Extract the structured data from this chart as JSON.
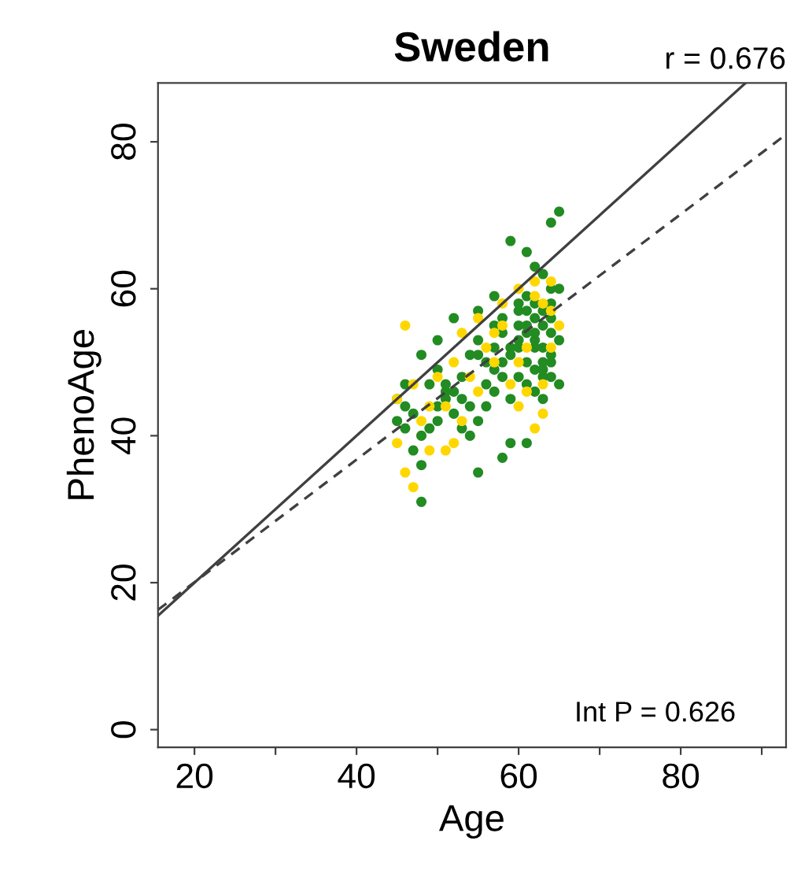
{
  "chart_data": {
    "type": "scatter",
    "title": "Sweden",
    "xlabel": "Age",
    "ylabel": "PhenoAge",
    "annotations": [
      "r = 0.676",
      "Int P = 0.626"
    ],
    "xlim": [
      15.5,
      93
    ],
    "ylim": [
      -2.4,
      88
    ],
    "xticks": [
      20,
      {
        "value": 30,
        "label": null
      },
      40,
      {
        "value": 50,
        "label": null
      },
      60,
      {
        "value": 70,
        "label": null
      },
      80,
      {
        "value": 90,
        "label": null
      }
    ],
    "yticks": [
      0,
      20,
      40,
      60,
      80
    ],
    "grid": false,
    "legend": false,
    "series": [
      {
        "marker": "circle",
        "color": "#228b22",
        "x": [
          65,
          64,
          59,
          61,
          62,
          63,
          64,
          57,
          55,
          52,
          50,
          48,
          46,
          45,
          45,
          46,
          47,
          48,
          48,
          55,
          58,
          59,
          61,
          65,
          64,
          56,
          54,
          60,
          61,
          62,
          63,
          64,
          65,
          62,
          63,
          60,
          59,
          58,
          57,
          61,
          62,
          63,
          64,
          60,
          61,
          62,
          63,
          64,
          65,
          58,
          59,
          60,
          61,
          62,
          63,
          64,
          56,
          57,
          58,
          55,
          54,
          53,
          52,
          51,
          50,
          49,
          48,
          47,
          46,
          50,
          51,
          52,
          53,
          54,
          55,
          56,
          57,
          58,
          59,
          60,
          61,
          62,
          63,
          60,
          61,
          62,
          63,
          64,
          49,
          50,
          51,
          53,
          55,
          57
        ],
        "values": [
          70.5,
          69,
          66.5,
          65,
          63,
          62,
          60,
          59,
          57,
          56,
          53,
          51,
          47,
          45,
          42,
          41,
          38,
          36,
          31,
          35,
          37,
          39,
          39,
          47,
          48,
          47,
          44,
          58,
          57,
          56,
          55,
          54,
          53,
          53,
          52,
          52,
          51,
          50,
          49,
          50,
          49,
          48,
          51,
          55,
          54,
          58,
          57,
          56,
          60,
          54,
          52,
          48,
          47,
          46,
          45,
          50,
          50,
          52,
          56,
          53,
          51,
          48,
          46,
          45,
          42,
          41,
          40,
          43,
          44,
          49,
          46,
          43,
          41,
          40,
          42,
          44,
          46,
          48,
          45,
          53,
          55,
          54,
          50,
          57,
          59,
          52,
          49,
          58,
          47,
          44,
          47,
          45,
          51,
          55
        ]
      },
      {
        "marker": "circle",
        "color": "#ffd700",
        "x": [
          46,
          45,
          46,
          47,
          49,
          51,
          52,
          53,
          55,
          60,
          62,
          63,
          64,
          63,
          62,
          64,
          50,
          51,
          48,
          52,
          54,
          56,
          58,
          57,
          60,
          61,
          45,
          47,
          49,
          53,
          55,
          59,
          61,
          63,
          65,
          58,
          60,
          62,
          64,
          57
        ],
        "values": [
          55,
          39,
          35,
          33,
          38,
          38,
          39,
          42,
          46,
          44,
          41,
          43,
          52,
          58,
          59,
          57,
          48,
          44,
          42,
          50,
          48,
          52,
          55,
          50,
          50,
          52,
          45,
          47,
          44,
          54,
          56,
          47,
          46,
          47,
          55,
          58,
          60,
          61,
          61,
          54
        ]
      },
      {
        "type": "line",
        "marker": "none",
        "line_style": "solid",
        "color": "#404040",
        "x": [
          15.5,
          88
        ],
        "values": [
          15.5,
          88
        ]
      },
      {
        "type": "line",
        "marker": "none",
        "line_style": "dashed",
        "color": "#404040",
        "x": [
          15.5,
          93
        ],
        "values": [
          16.3,
          81
        ]
      }
    ]
  }
}
